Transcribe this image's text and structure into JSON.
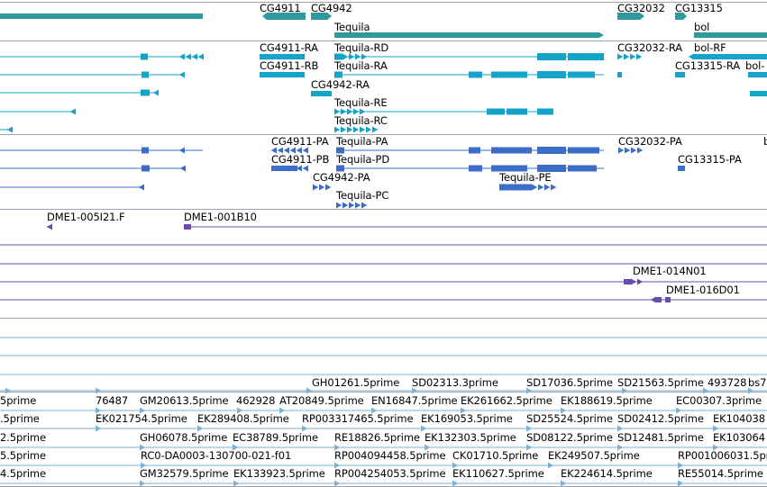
{
  "colors": {
    "gene": "#2f9a9e",
    "transcript_flybase": "#15a4c9",
    "transcript_other": "#3c6ec8",
    "clone": "#6a4cae",
    "est": "#7cb2d6",
    "separator": "#9aa3b3"
  },
  "genes": {
    "labels": [
      "CG4911",
      "CG4942",
      "Tequila",
      "CG32032",
      "CG13315",
      "bol"
    ]
  },
  "transcripts_flybase": {
    "labels": [
      "CG4911-RA",
      "Tequila-RD",
      "CG32032-RA",
      "bol-RF",
      "CG4911-RB",
      "Tequila-RA",
      "CG13315-RA",
      "bol-",
      "CG4942-RA",
      "Tequila-RE",
      "Tequila-RC"
    ]
  },
  "transcripts_other": {
    "labels": [
      "CG4911-PA",
      "Tequila-PA",
      "CG32032-PA",
      "b",
      "CG4911-PB",
      "Tequila-PD",
      "CG13315-PA",
      "CG4942-PA",
      "Tequila-PE",
      "Tequila-PC"
    ]
  },
  "clones": {
    "labels": [
      "DME1-005I21.F",
      "DME1-001B10",
      "DME1-014N01",
      "DME1-016D01"
    ]
  },
  "ests": {
    "labels": [
      "GH01261.5prime",
      "SD02313.3prime",
      "SD17036.5prime",
      "SD21563.5prime",
      "493728",
      "bs7",
      "5prime",
      "76487",
      "GM20613.5prime",
      "462928",
      "AT20849.5prime",
      "EN16847.5prime",
      "EK261662.5prime",
      "EK188619.5prime",
      "EC00307.3prime",
      ".5prime",
      "EK021754.5prime",
      "EK289408.5prime",
      "RP003317465.5prime",
      "EK169053.5prime",
      "SD25524.5prime",
      "SD02412.5prime",
      "EK104038",
      "2.5prime",
      "GH06078.5prime",
      "EC38789.5prime",
      "RE18826.5prime",
      "EK132303.5prime",
      "SD08122.5prime",
      "SD12481.5prime",
      "EK103064",
      "5.5prime",
      "RC0-DA0003-130700-021-f01",
      "RP004094458.5prime",
      "CK01710.5prime",
      "EK249507.5prime",
      "RP001006031.5prime",
      "4.5prime",
      "GM32579.5prime",
      "EK133923.5prime",
      "RP004254053.5prime",
      "EK110627.5prime",
      "EK224614.5prime",
      "RE55014.5prime"
    ]
  }
}
